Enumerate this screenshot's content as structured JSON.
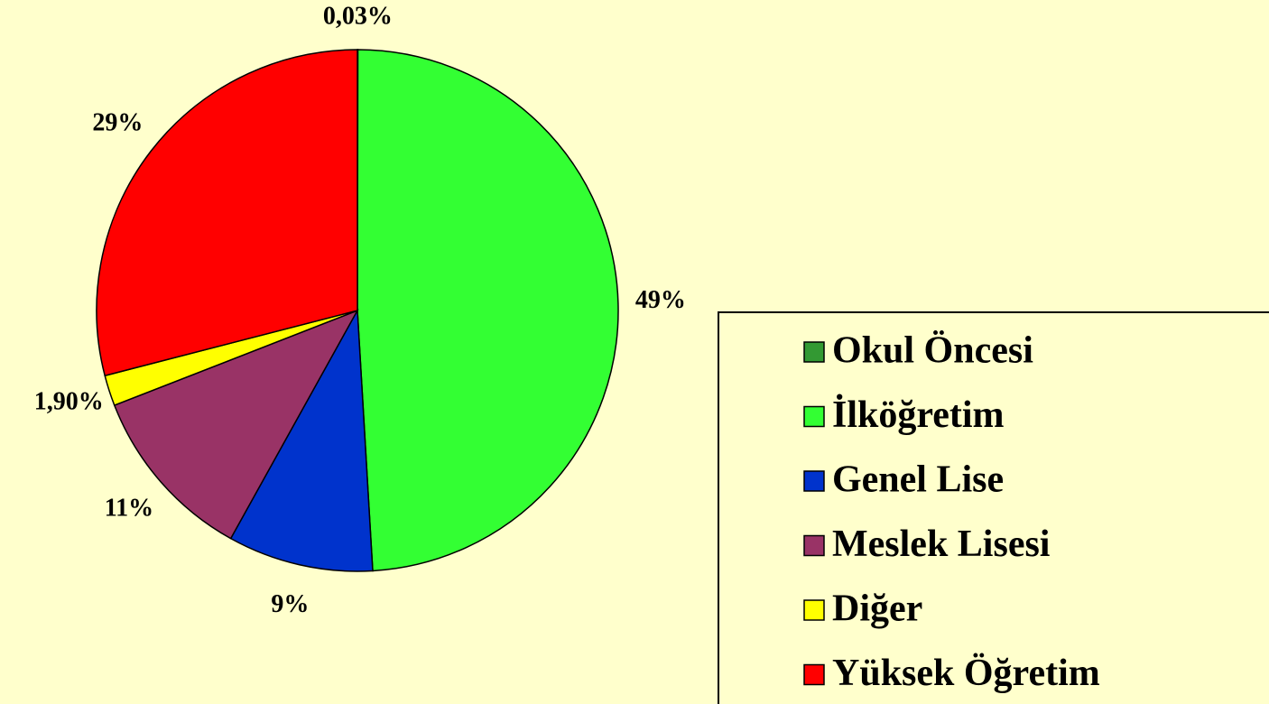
{
  "chart_data": {
    "type": "pie",
    "categories": [
      "Okul Öncesi",
      "İlköğretim",
      "Genel Lise",
      "Meslek Lisesi",
      "Diğer",
      "Yüksek Öğretim"
    ],
    "values": [
      0.03,
      49,
      9,
      11,
      1.9,
      29
    ],
    "value_labels": [
      "0,03%",
      "49%",
      "9%",
      "11%",
      "1,90%",
      "29%"
    ],
    "colors": [
      "#339933",
      "#33ff33",
      "#0033cc",
      "#993366",
      "#ffff00",
      "#ff0000"
    ],
    "legend": "right"
  }
}
